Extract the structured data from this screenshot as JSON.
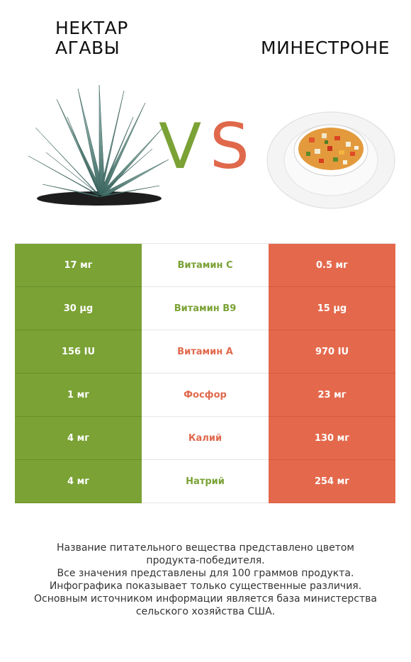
{
  "header": {
    "left_title": "НЕКТАР\nАГАВЫ",
    "right_title": "МИНЕСТРОНЕ",
    "vs_v": "V",
    "vs_s": "S"
  },
  "colors": {
    "left": "#7aa235",
    "right": "#e4694c"
  },
  "rows": [
    {
      "left": "17 мг",
      "nutrient": "Витамин C",
      "right": "0.5 мг",
      "winner": "left"
    },
    {
      "left": "30 µg",
      "nutrient": "Витамин B9",
      "right": "15 µg",
      "winner": "left"
    },
    {
      "left": "156 IU",
      "nutrient": "Витамин A",
      "right": "970 IU",
      "winner": "right"
    },
    {
      "left": "1 мг",
      "nutrient": "Фосфор",
      "right": "23 мг",
      "winner": "right"
    },
    {
      "left": "4 мг",
      "nutrient": "Калий",
      "right": "130 мг",
      "winner": "right"
    },
    {
      "left": "4 мг",
      "nutrient": "Натрий",
      "right": "254 мг",
      "winner": "left"
    }
  ],
  "footer": {
    "line1": "Название питательного вещества представлено цветом",
    "line2": "продукта-победителя.",
    "line3": "Все значения представлены для 100 граммов продукта.",
    "line4": "Инфографика показывает только существенные различия.",
    "line5": "Основным источником информации является база министерства",
    "line6": "сельского хозяйства США."
  },
  "images": {
    "left_icon": "agave-plant-icon",
    "right_icon": "minestrone-soup-bowl-icon"
  }
}
